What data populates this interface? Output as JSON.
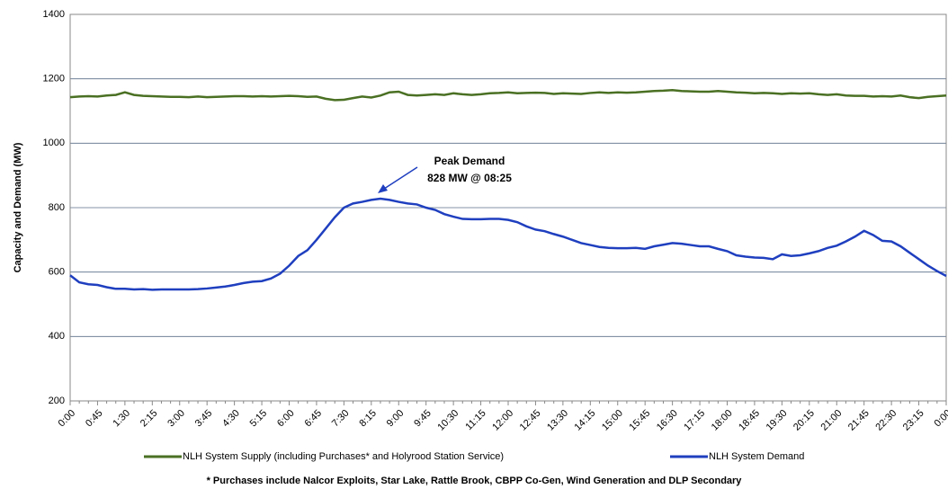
{
  "chart_data": {
    "type": "line",
    "y_label": "Capacity and Demand (MW)",
    "annotation": [
      "Peak Demand",
      "828 MW @ 08:25"
    ],
    "footnote": "* Purchases include Nalcor Exploits, Star Lake, Rattle Brook, CBPP Co-Gen, Wind Generation and DLP Secondary",
    "categories": [
      "0:00",
      null,
      null,
      "0:45",
      null,
      null,
      "1:30",
      null,
      null,
      "2:15",
      null,
      null,
      "3:00",
      null,
      null,
      "3:45",
      null,
      null,
      "4:30",
      null,
      null,
      "5:15",
      null,
      null,
      "6:00",
      null,
      null,
      "6:45",
      null,
      null,
      "7:30",
      null,
      null,
      "8:15",
      null,
      null,
      "9:00",
      null,
      null,
      "9:45",
      null,
      null,
      "10:30",
      null,
      null,
      "11:15",
      null,
      null,
      "12:00",
      null,
      null,
      "12:45",
      null,
      null,
      "13:30",
      null,
      null,
      "14:15",
      null,
      null,
      "15:00",
      null,
      null,
      "15:45",
      null,
      null,
      "16:30",
      null,
      null,
      "17:15",
      null,
      null,
      "18:00",
      null,
      null,
      "18:45",
      null,
      null,
      "19:30",
      null,
      null,
      "20:15",
      null,
      null,
      "21:00",
      null,
      null,
      "21:45",
      null,
      null,
      "22:30",
      null,
      null,
      "23:15",
      null,
      null,
      "0:00"
    ],
    "series": [
      {
        "name": "NLH System Supply (including Purchases* and Holyrood Station Service)",
        "color": "#4a7023",
        "values": [
          1143,
          1145,
          1146,
          1145,
          1148,
          1150,
          1158,
          1150,
          1147,
          1146,
          1145,
          1144,
          1144,
          1143,
          1145,
          1143,
          1144,
          1145,
          1146,
          1146,
          1145,
          1146,
          1145,
          1146,
          1147,
          1146,
          1144,
          1145,
          1138,
          1134,
          1135,
          1140,
          1145,
          1142,
          1148,
          1158,
          1160,
          1150,
          1148,
          1150,
          1152,
          1150,
          1155,
          1152,
          1150,
          1152,
          1155,
          1156,
          1158,
          1155,
          1156,
          1157,
          1156,
          1153,
          1155,
          1154,
          1153,
          1156,
          1158,
          1156,
          1158,
          1157,
          1158,
          1160,
          1162,
          1163,
          1165,
          1162,
          1161,
          1160,
          1160,
          1162,
          1160,
          1158,
          1157,
          1155,
          1156,
          1155,
          1153,
          1155,
          1154,
          1155,
          1152,
          1150,
          1152,
          1148,
          1147,
          1147,
          1145,
          1146,
          1145,
          1148,
          1143,
          1140,
          1144,
          1146,
          1148
        ]
      },
      {
        "name": "NLH System Demand",
        "color": "#1f3fbf",
        "values": [
          590,
          568,
          562,
          560,
          553,
          548,
          548,
          546,
          547,
          545,
          546,
          546,
          546,
          546,
          547,
          549,
          552,
          555,
          560,
          566,
          570,
          572,
          580,
          595,
          620,
          650,
          668,
          700,
          735,
          770,
          800,
          813,
          818,
          824,
          828,
          824,
          818,
          813,
          810,
          800,
          793,
          780,
          772,
          765,
          764,
          764,
          765,
          765,
          762,
          755,
          742,
          732,
          727,
          718,
          710,
          700,
          690,
          684,
          678,
          675,
          674,
          674,
          675,
          672,
          680,
          685,
          690,
          688,
          684,
          680,
          680,
          672,
          665,
          652,
          648,
          645,
          644,
          640,
          655,
          650,
          652,
          658,
          665,
          675,
          682,
          695,
          710,
          728,
          715,
          697,
          695,
          680,
          660,
          640,
          620,
          603,
          588
        ]
      }
    ],
    "ylim": [
      200,
      1400
    ],
    "yticks": [
      200,
      400,
      600,
      800,
      1000,
      1200,
      1400
    ],
    "grid": true,
    "legend": "bottom"
  }
}
